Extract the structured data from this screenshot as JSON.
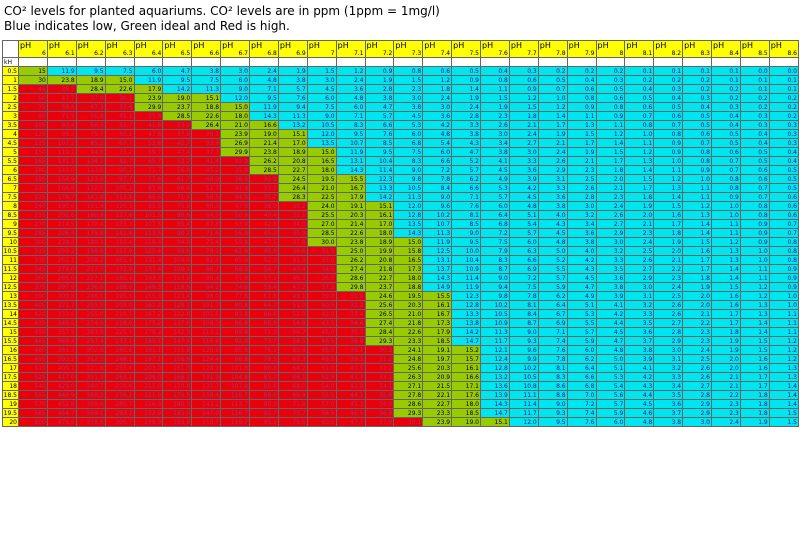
{
  "header": {
    "line1": "CO² levels for planted aquariums. CO² levels are in ppm (1ppm = 1mg/l)",
    "line2": "Blue indicates low, Green ideal and Red is high."
  },
  "table": {
    "ph_label": "pH",
    "kh_label": "kH",
    "ph_values": [
      "6",
      "6.1",
      "6.2",
      "6.3",
      "6.4",
      "6.5",
      "6.6",
      "6.7",
      "6.8",
      "6.9",
      "7",
      "7.1",
      "7.2",
      "7.3",
      "7.4",
      "7.5",
      "7.6",
      "7.7",
      "7.8",
      "7.9",
      "8",
      "8.1",
      "8.2",
      "8.3",
      "8.4",
      "8.5",
      "8.6"
    ],
    "kh_values": [
      "0.5",
      "1",
      "1.5",
      "2",
      "2.5",
      "3",
      "3.5",
      "4",
      "4.5",
      "5",
      "5.5",
      "6",
      "6.5",
      "7",
      "7.5",
      "8",
      "8.5",
      "9",
      "9.5",
      "10",
      "10.5",
      "11",
      "11.5",
      "12",
      "12.5",
      "13",
      "13.5",
      "14",
      "14.5",
      "15",
      "15.5",
      "16",
      "16.5",
      "17",
      "17.5",
      "18",
      "18.5",
      "19",
      "19.5",
      "20"
    ],
    "colors": {
      "yellow": "#ffff00",
      "red": "#e8000c",
      "green": "#99cc00",
      "cyan": "#00e5ee"
    },
    "rows": [
      [
        "15",
        "11.9",
        "9.5",
        "7.5",
        "6.0",
        "4.7",
        "3.8",
        "3.0",
        "2.4",
        "1.9",
        "1.5",
        "1.2",
        "0.9",
        "0.8",
        "0.6",
        "0.5",
        "0.4",
        "0.3",
        "0.2",
        "0.2",
        "0.2",
        "0.1",
        "0.1",
        "0.1",
        "0.1",
        "0.0",
        "0.0"
      ],
      [
        "30",
        "23.8",
        "18.9",
        "15.0",
        "11.9",
        "9.5",
        "7.5",
        "6.0",
        "4.8",
        "3.8",
        "3.0",
        "2.4",
        "1.9",
        "1.5",
        "1.2",
        "0.9",
        "0.8",
        "0.6",
        "0.5",
        "0.4",
        "0.3",
        "0.2",
        "0.2",
        "0.2",
        "0.1",
        "0.1",
        "0.1"
      ],
      [
        "45",
        "35.7",
        "28.4",
        "22.6",
        "17.9",
        "14.2",
        "11.3",
        "9.0",
        "7.1",
        "5.7",
        "4.5",
        "3.6",
        "2.8",
        "2.3",
        "1.8",
        "1.4",
        "1.1",
        "0.9",
        "0.7",
        "0.6",
        "0.5",
        "0.4",
        "0.3",
        "0.2",
        "0.2",
        "0.1",
        "0.1"
      ],
      [
        "60",
        "47.7",
        "37.9",
        "30.1",
        "23.9",
        "19.0",
        "15.1",
        "12.0",
        "9.5",
        "7.6",
        "6.0",
        "4.8",
        "3.8",
        "3.0",
        "2.4",
        "1.9",
        "1.5",
        "1.2",
        "1.0",
        "0.8",
        "0.6",
        "0.5",
        "0.4",
        "0.3",
        "0.2",
        "0.2",
        "0.2"
      ],
      [
        "75",
        "59.6",
        "47.3",
        "37.6",
        "29.9",
        "23.7",
        "18.8",
        "15.0",
        "11.9",
        "9.4",
        "7.5",
        "6.0",
        "4.7",
        "3.8",
        "3.0",
        "2.4",
        "1.9",
        "1.5",
        "1.2",
        "0.9",
        "0.8",
        "0.6",
        "0.5",
        "0.4",
        "0.3",
        "0.2",
        "0.2"
      ],
      [
        "90",
        "71.5",
        "56.8",
        "45.1",
        "35.8",
        "28.5",
        "22.6",
        "18.0",
        "14.3",
        "11.3",
        "9.0",
        "7.1",
        "5.7",
        "4.5",
        "3.6",
        "2.8",
        "2.3",
        "1.8",
        "1.4",
        "1.1",
        "0.9",
        "0.7",
        "0.6",
        "0.5",
        "0.4",
        "0.3",
        "0.2"
      ],
      [
        "105",
        "83.4",
        "66.3",
        "52.7",
        "41.8",
        "33.2",
        "26.4",
        "21.0",
        "16.6",
        "13.2",
        "10.5",
        "8.3",
        "6.6",
        "5.3",
        "4.2",
        "3.3",
        "2.6",
        "2.1",
        "1.7",
        "1.3",
        "1.1",
        "0.8",
        "0.7",
        "0.5",
        "0.4",
        "0.3",
        "0.3"
      ],
      [
        "120",
        "95.3",
        "75.7",
        "60.2",
        "47.8",
        "37.9",
        "30.1",
        "23.9",
        "19.0",
        "15.1",
        "12.0",
        "9.5",
        "7.6",
        "6.0",
        "4.8",
        "3.8",
        "3.0",
        "2.4",
        "1.9",
        "1.5",
        "1.2",
        "1.0",
        "0.8",
        "0.6",
        "0.5",
        "0.4",
        "0.3"
      ],
      [
        "135",
        "107.2",
        "85.2",
        "67.7",
        "53.8",
        "42.7",
        "33.9",
        "26.9",
        "21.4",
        "17.0",
        "13.5",
        "10.7",
        "8.5",
        "6.8",
        "5.4",
        "4.3",
        "3.4",
        "2.7",
        "2.1",
        "1.7",
        "1.4",
        "1.1",
        "0.9",
        "0.7",
        "0.5",
        "0.4",
        "0.3"
      ],
      [
        "150",
        "119.1",
        "94.6",
        "75.2",
        "59.7",
        "47.4",
        "37.7",
        "29.9",
        "23.8",
        "18.9",
        "15.0",
        "11.9",
        "9.5",
        "7.5",
        "6.0",
        "4.7",
        "3.8",
        "3.0",
        "2.4",
        "1.9",
        "1.5",
        "1.2",
        "0.9",
        "0.8",
        "0.6",
        "0.5",
        "0.4"
      ],
      [
        "165",
        "131.1",
        "104.1",
        "82.7",
        "65.7",
        "52.2",
        "41.4",
        "32.9",
        "26.2",
        "20.8",
        "16.5",
        "13.1",
        "10.4",
        "8.3",
        "6.6",
        "5.2",
        "4.1",
        "3.3",
        "2.6",
        "2.1",
        "1.7",
        "1.3",
        "1.0",
        "0.8",
        "0.7",
        "0.5",
        "0.4"
      ],
      [
        "180",
        "143.0",
        "113.6",
        "90.2",
        "71.7",
        "56.9",
        "45.2",
        "35.9",
        "28.5",
        "22.7",
        "18.0",
        "14.3",
        "11.4",
        "9.0",
        "7.2",
        "5.7",
        "4.5",
        "3.6",
        "2.9",
        "2.3",
        "1.8",
        "1.4",
        "1.1",
        "0.9",
        "0.7",
        "0.6",
        "0.5"
      ],
      [
        "195",
        "154.9",
        "123.0",
        "97.7",
        "77.6",
        "61.7",
        "49.0",
        "38.9",
        "30.9",
        "24.5",
        "19.5",
        "15.5",
        "12.3",
        "9.8",
        "7.8",
        "6.2",
        "4.9",
        "3.9",
        "3.1",
        "2.5",
        "2.0",
        "1.5",
        "1.2",
        "1.0",
        "0.8",
        "0.6",
        "0.5"
      ],
      [
        "210",
        "166.8",
        "132.5",
        "105.2",
        "83.6",
        "66.4",
        "52.7",
        "41.9",
        "33.3",
        "26.4",
        "21.0",
        "16.7",
        "13.3",
        "10.5",
        "8.4",
        "6.6",
        "5.3",
        "4.2",
        "3.3",
        "2.6",
        "2.1",
        "1.7",
        "1.3",
        "1.1",
        "0.8",
        "0.7",
        "0.5"
      ],
      [
        "225",
        "178.7",
        "141.9",
        "112.8",
        "89.6",
        "71.1",
        "56.5",
        "44.9",
        "35.7",
        "28.3",
        "22.5",
        "17.9",
        "14.2",
        "11.3",
        "9.0",
        "7.1",
        "5.7",
        "4.5",
        "3.6",
        "2.8",
        "2.3",
        "1.8",
        "1.4",
        "1.1",
        "0.9",
        "0.7",
        "0.6"
      ],
      [
        "240",
        "190.6",
        "151.4",
        "120.3",
        "95.5",
        "75.9",
        "60.3",
        "47.9",
        "38.0",
        "30.2",
        "24.0",
        "19.1",
        "15.1",
        "12.0",
        "9.6",
        "7.6",
        "6.0",
        "4.8",
        "3.8",
        "3.0",
        "2.4",
        "1.9",
        "1.5",
        "1.2",
        "1.0",
        "0.8",
        "0.6"
      ],
      [
        "255",
        "202.6",
        "160.9",
        "127.8",
        "101.5",
        "80.6",
        "64.0",
        "50.9",
        "40.4",
        "32.1",
        "25.5",
        "20.3",
        "16.1",
        "12.8",
        "10.2",
        "8.1",
        "6.4",
        "5.1",
        "4.0",
        "3.2",
        "2.6",
        "2.0",
        "1.6",
        "1.3",
        "1.0",
        "0.8",
        "0.6"
      ],
      [
        "270",
        "214.5",
        "170.4",
        "135.3",
        "107.5",
        "85.4",
        "67.8",
        "53.9",
        "42.8",
        "34.0",
        "27.0",
        "21.4",
        "17.0",
        "13.5",
        "10.7",
        "8.5",
        "6.8",
        "5.4",
        "4.3",
        "3.4",
        "2.7",
        "2.1",
        "1.7",
        "1.4",
        "1.1",
        "0.9",
        "0.7"
      ],
      [
        "285",
        "226.4",
        "179.8",
        "142.8",
        "113.5",
        "90.1",
        "71.6",
        "56.9",
        "45.2",
        "35.9",
        "28.5",
        "22.6",
        "18.0",
        "14.3",
        "11.3",
        "9.0",
        "7.2",
        "5.7",
        "4.5",
        "3.6",
        "2.9",
        "2.3",
        "1.8",
        "1.4",
        "1.1",
        "0.9",
        "0.7"
      ],
      [
        "300",
        "238.3",
        "189.3",
        "150.4",
        "119.4",
        "94.9",
        "75.4",
        "59.9",
        "47.5",
        "37.8",
        "30.0",
        "23.8",
        "18.9",
        "15.0",
        "11.9",
        "9.5",
        "7.5",
        "6.0",
        "4.8",
        "3.8",
        "3.0",
        "2.4",
        "1.9",
        "1.5",
        "1.2",
        "0.9",
        "0.8"
      ],
      [
        "315",
        "250.2",
        "198.8",
        "157.9",
        "125.4",
        "99.6",
        "79.1",
        "62.9",
        "49.9",
        "39.6",
        "31.5",
        "25.0",
        "19.9",
        "15.8",
        "12.5",
        "10.0",
        "7.9",
        "6.3",
        "5.0",
        "4.0",
        "3.2",
        "2.5",
        "2.0",
        "1.6",
        "1.3",
        "1.0",
        "0.8"
      ],
      [
        "330",
        "262.1",
        "208.2",
        "165.4",
        "131.4",
        "104.4",
        "82.9",
        "65.9",
        "52.3",
        "41.5",
        "33.0",
        "26.2",
        "20.8",
        "16.5",
        "13.1",
        "10.4",
        "8.3",
        "6.6",
        "5.2",
        "4.2",
        "3.3",
        "2.6",
        "2.1",
        "1.7",
        "1.3",
        "1.0",
        "0.8"
      ],
      [
        "345",
        "274.0",
        "217.7",
        "172.9",
        "137.4",
        "109.1",
        "86.7",
        "68.9",
        "54.7",
        "43.4",
        "34.5",
        "27.4",
        "21.8",
        "17.3",
        "13.7",
        "10.9",
        "8.7",
        "6.9",
        "5.5",
        "4.3",
        "3.5",
        "2.7",
        "2.2",
        "1.7",
        "1.4",
        "1.1",
        "0.9"
      ],
      [
        "360",
        "286.0",
        "227.1",
        "180.4",
        "143.3",
        "113.9",
        "90.4",
        "71.8",
        "57.1",
        "45.3",
        "36.0",
        "28.6",
        "22.7",
        "18.0",
        "14.3",
        "11.4",
        "9.0",
        "7.2",
        "5.7",
        "4.5",
        "3.6",
        "2.9",
        "2.3",
        "1.8",
        "1.4",
        "1.1",
        "0.9"
      ],
      [
        "375",
        "297.9",
        "236.6",
        "188.0",
        "149.3",
        "118.6",
        "94.2",
        "74.8",
        "59.4",
        "47.2",
        "37.5",
        "29.8",
        "23.7",
        "18.8",
        "14.9",
        "11.9",
        "9.4",
        "7.5",
        "5.9",
        "4.7",
        "3.8",
        "3.0",
        "2.4",
        "1.9",
        "1.5",
        "1.2",
        "0.9"
      ],
      [
        "390",
        "309.8",
        "246.1",
        "195.5",
        "155.3",
        "123.4",
        "98.0",
        "77.8",
        "61.8",
        "49.1",
        "39.0",
        "31.0",
        "24.6",
        "19.5",
        "15.5",
        "12.3",
        "9.8",
        "7.8",
        "6.2",
        "4.9",
        "3.9",
        "3.1",
        "2.5",
        "2.0",
        "1.6",
        "1.2",
        "1.0"
      ],
      [
        "405",
        "321.7",
        "255.5",
        "203.0",
        "161.2",
        "128.1",
        "101.7",
        "80.8",
        "64.2",
        "51.0",
        "40.5",
        "32.2",
        "25.6",
        "20.3",
        "16.1",
        "12.8",
        "10.2",
        "8.1",
        "6.4",
        "5.1",
        "4.1",
        "3.2",
        "2.6",
        "2.0",
        "1.6",
        "1.3",
        "1.0"
      ],
      [
        "420",
        "333.6",
        "265.0",
        "210.5",
        "167.2",
        "132.8",
        "105.5",
        "83.8",
        "66.6",
        "52.9",
        "42.0",
        "33.4",
        "26.5",
        "21.0",
        "16.7",
        "13.3",
        "10.5",
        "8.4",
        "6.7",
        "5.3",
        "4.2",
        "3.3",
        "2.6",
        "2.1",
        "1.7",
        "1.3",
        "1.1"
      ],
      [
        "435",
        "345.5",
        "274.5",
        "218.0",
        "173.2",
        "137.6",
        "109.3",
        "86.8",
        "68.9",
        "54.8",
        "43.5",
        "34.6",
        "27.4",
        "21.8",
        "17.3",
        "13.8",
        "10.9",
        "8.7",
        "6.9",
        "5.5",
        "4.4",
        "3.5",
        "2.7",
        "2.2",
        "1.7",
        "1.4",
        "1.1"
      ],
      [
        "450",
        "357.5",
        "283.9",
        "225.5",
        "179.2",
        "142.3",
        "113.1",
        "89.8",
        "71.3",
        "56.7",
        "45.0",
        "35.7",
        "28.4",
        "22.6",
        "17.9",
        "14.2",
        "11.3",
        "9.0",
        "7.1",
        "5.7",
        "4.5",
        "3.6",
        "2.8",
        "2.3",
        "1.8",
        "1.4",
        "1.1"
      ],
      [
        "465",
        "369.4",
        "293.4",
        "233.1",
        "185.1",
        "147.1",
        "116.8",
        "92.8",
        "73.7",
        "58.5",
        "46.5",
        "36.9",
        "29.3",
        "23.3",
        "18.5",
        "14.7",
        "11.7",
        "9.3",
        "7.4",
        "5.9",
        "4.7",
        "3.7",
        "2.9",
        "2.3",
        "1.9",
        "1.5",
        "1.2"
      ],
      [
        "480",
        "381.3",
        "302.9",
        "240.6",
        "191.1",
        "151.8",
        "120.6",
        "95.8",
        "76.1",
        "60.4",
        "48.0",
        "38.1",
        "30.3",
        "24.1",
        "19.1",
        "15.2",
        "12.1",
        "9.6",
        "7.6",
        "6.0",
        "4.8",
        "3.8",
        "3.0",
        "2.4",
        "1.9",
        "1.5",
        "1.2"
      ],
      [
        "495",
        "393.2",
        "312.3",
        "248.1",
        "197.1",
        "156.6",
        "124.4",
        "98.8",
        "78.5",
        "62.3",
        "49.5",
        "39.3",
        "31.2",
        "24.8",
        "19.7",
        "15.7",
        "12.4",
        "9.9",
        "7.8",
        "6.2",
        "5.0",
        "3.9",
        "3.1",
        "2.5",
        "2.0",
        "1.6",
        "1.2"
      ],
      [
        "510",
        "405.1",
        "321.8",
        "255.6",
        "203.0",
        "161.3",
        "128.1",
        "101.8",
        "80.8",
        "64.2",
        "51.0",
        "40.5",
        "32.2",
        "25.6",
        "20.3",
        "16.1",
        "12.8",
        "10.2",
        "8.1",
        "6.4",
        "5.1",
        "4.1",
        "3.2",
        "2.6",
        "2.0",
        "1.6",
        "1.3"
      ],
      [
        "525",
        "417.0",
        "331.3",
        "263.1",
        "209.0",
        "166.1",
        "131.9",
        "104.8",
        "83.2",
        "66.1",
        "52.5",
        "41.7",
        "33.1",
        "26.3",
        "20.9",
        "16.6",
        "13.2",
        "10.5",
        "8.3",
        "6.6",
        "5.3",
        "4.2",
        "3.3",
        "2.6",
        "2.1",
        "1.7",
        "1.3"
      ],
      [
        "540",
        "429.0",
        "340.7",
        "270.6",
        "215.0",
        "170.8",
        "135.7",
        "107.8",
        "85.6",
        "68.0",
        "54.0",
        "42.9",
        "34.1",
        "27.1",
        "21.5",
        "17.1",
        "13.6",
        "10.8",
        "8.6",
        "6.8",
        "5.4",
        "4.3",
        "3.4",
        "2.7",
        "2.1",
        "1.7",
        "1.4"
      ],
      [
        "555",
        "440.9",
        "350.2",
        "278.2",
        "221.0",
        "175.5",
        "139.4",
        "110.7",
        "88.0",
        "69.9",
        "55.5",
        "44.1",
        "35.0",
        "27.8",
        "22.1",
        "17.6",
        "13.9",
        "11.1",
        "8.8",
        "7.0",
        "5.6",
        "4.4",
        "3.5",
        "2.8",
        "2.2",
        "1.8",
        "1.4"
      ],
      [
        "570",
        "452.8",
        "359.6",
        "285.7",
        "226.9",
        "180.3",
        "143.2",
        "113.7",
        "90.3",
        "71.8",
        "57.0",
        "45.3",
        "36.0",
        "28.6",
        "22.7",
        "18.0",
        "14.3",
        "11.4",
        "9.0",
        "7.2",
        "5.7",
        "4.5",
        "3.6",
        "2.9",
        "2.3",
        "1.8",
        "1.4"
      ],
      [
        "585",
        "464.7",
        "369.1",
        "293.2",
        "232.9",
        "185.0",
        "147.0",
        "116.7",
        "92.7",
        "73.7",
        "58.5",
        "46.5",
        "36.9",
        "29.3",
        "23.3",
        "18.5",
        "14.7",
        "11.7",
        "9.3",
        "7.4",
        "5.9",
        "4.6",
        "3.7",
        "2.9",
        "2.3",
        "1.8",
        "1.5"
      ],
      [
        "600",
        "476.6",
        "378.6",
        "300.7",
        "238.9",
        "189.8",
        "150.7",
        "119.7",
        "95.1",
        "75.5",
        "60.0",
        "47.7",
        "37.9",
        "30.1",
        "23.9",
        "19.0",
        "15.1",
        "12.0",
        "9.5",
        "7.6",
        "6.0",
        "4.8",
        "3.8",
        "3.0",
        "2.4",
        "1.9",
        "1.5"
      ]
    ]
  }
}
